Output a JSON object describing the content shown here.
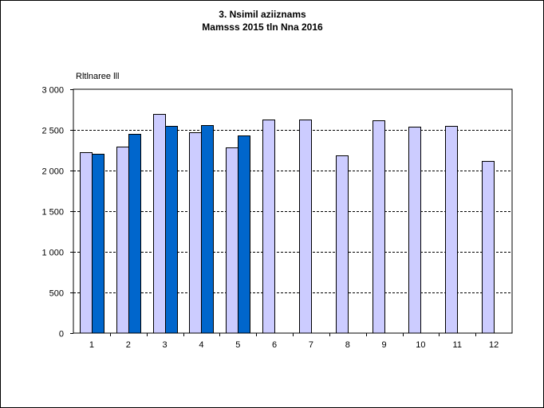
{
  "chart_data": {
    "type": "bar",
    "title": "3. Nsimil aziiznams",
    "subtitle": "Mamsss 2015 tln Nna 2016",
    "ylabel": "Rltlnaree lll",
    "xlabel": "",
    "categories": [
      "1",
      "2",
      "3",
      "4",
      "5",
      "6",
      "7",
      "8",
      "9",
      "10",
      "11",
      "12"
    ],
    "ylim": [
      0,
      3000
    ],
    "yticks": [
      0,
      500,
      1000,
      1500,
      2000,
      2500,
      3000
    ],
    "ytick_labels": [
      "0",
      "500",
      "1 000",
      "1 500",
      "2 000",
      "2 500",
      "3 000"
    ],
    "grid": true,
    "legend": "none",
    "series": [
      {
        "color": "#ccccff",
        "values": [
          2225,
          2295,
          2695,
          2470,
          2285,
          2625,
          2625,
          2185,
          2620,
          2540,
          2545,
          2115
        ]
      },
      {
        "color": "#0066cc",
        "values": [
          2205,
          2450,
          2550,
          2560,
          2430,
          null,
          null,
          null,
          null,
          null,
          null,
          null
        ]
      }
    ]
  }
}
